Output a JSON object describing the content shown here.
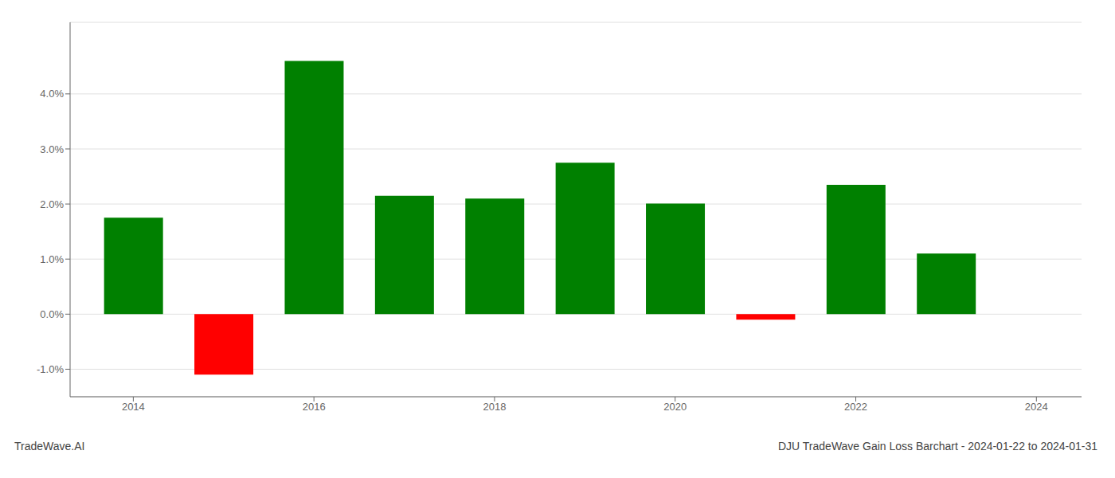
{
  "chart_data": {
    "type": "bar",
    "title": "DJU TradeWave Gain Loss Barchart - 2024-01-22 to 2024-01-31",
    "annotations": [
      "TradeWave.AI"
    ],
    "x": [
      2014,
      2015,
      2016,
      2017,
      2018,
      2019,
      2020,
      2021,
      2022,
      2023
    ],
    "values": [
      0.0175,
      -0.011,
      0.046,
      0.0215,
      0.021,
      0.0275,
      0.0201,
      -0.001,
      0.0235,
      0.011
    ],
    "colors": [
      "#008000",
      "#ff0000",
      "#008000",
      "#008000",
      "#008000",
      "#008000",
      "#008000",
      "#ff0000",
      "#008000",
      "#008000"
    ],
    "xlim": [
      2013.3,
      2024.5
    ],
    "xticks": [
      2014,
      2016,
      2018,
      2020,
      2022,
      2024
    ],
    "ylim": [
      -0.015,
      0.053
    ],
    "yticks": [
      {
        "value": -0.01,
        "label": "-1.0%"
      },
      {
        "value": 0.0,
        "label": "0.0%"
      },
      {
        "value": 0.01,
        "label": "1.0%"
      },
      {
        "value": 0.02,
        "label": "2.0%"
      },
      {
        "value": 0.03,
        "label": "3.0%"
      },
      {
        "value": 0.04,
        "label": "4.0%"
      }
    ],
    "grid": true
  }
}
